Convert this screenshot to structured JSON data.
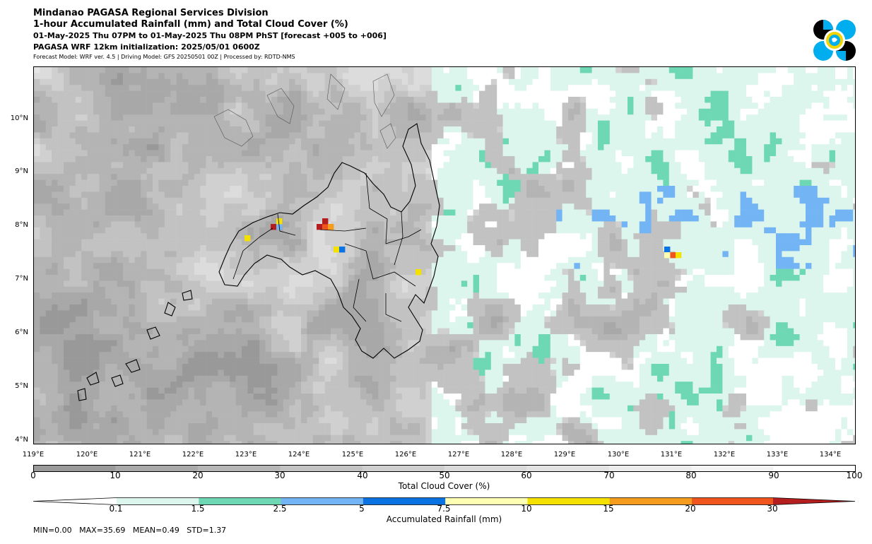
{
  "header": {
    "title": "Mindanao PAGASA Regional Services Division",
    "subtitle": "1-hour Accumulated Rainfall (mm) and Total Cloud Cover (%)",
    "valid_time": "01-May-2025 Thu 07PM to 01-May-2025 Thu 08PM PhST [forecast +005 to +006]",
    "initialization": "PAGASA WRF 12km initialization: 2025/05/01 0600Z",
    "model_info": "Forecast Model: WRF ver. 4.5 | Driving Model: GFS 20250501 00Z | Processed by: RDTD-NMS"
  },
  "logo": {
    "icon": "pagasa-logo-icon",
    "colors": [
      "#000000",
      "#00aeef",
      "#f2d500"
    ]
  },
  "map": {
    "lat_labels": [
      "10°N",
      "9°N",
      "8°N",
      "7°N",
      "6°N",
      "5°N",
      "4°N"
    ],
    "lon_labels": [
      "119°E",
      "120°E",
      "121°E",
      "122°E",
      "123°E",
      "124°E",
      "125°E",
      "126°E",
      "127°E",
      "128°E",
      "129°E",
      "130°E",
      "131°E",
      "132°E",
      "133°E",
      "134°E"
    ],
    "lon_range": [
      119,
      134.5
    ],
    "lat_range": [
      3.9,
      10.9
    ]
  },
  "cloud_colorbar": {
    "label": "Total Cloud Cover (%)",
    "ticks": [
      "0",
      "10",
      "20",
      "30",
      "40",
      "50",
      "60",
      "70",
      "80",
      "90",
      "100"
    ],
    "colors": [
      "#9a9a9a",
      "#a9a9a9",
      "#b6b6b6",
      "#c3c3c3",
      "#cfcfcf",
      "#dadada",
      "#e3e3e3",
      "#ececec",
      "#f4f4f4",
      "#ffffff"
    ]
  },
  "rain_colorbar": {
    "label": "Accumulated Rainfall (mm)",
    "ticks": [
      "0.1",
      "1.5",
      "2.5",
      "5",
      "7.5",
      "10",
      "15",
      "20",
      "30"
    ],
    "colors": [
      "#dcf5ed",
      "#6ed7b4",
      "#73b4f5",
      "#0a73e1",
      "#ffffb4",
      "#f5e100",
      "#f59b1e",
      "#f0551e",
      "#b41e1e"
    ]
  },
  "stats": "MIN=0.00   MAX=35.69   MEAN=0.49   STD=1.37"
}
